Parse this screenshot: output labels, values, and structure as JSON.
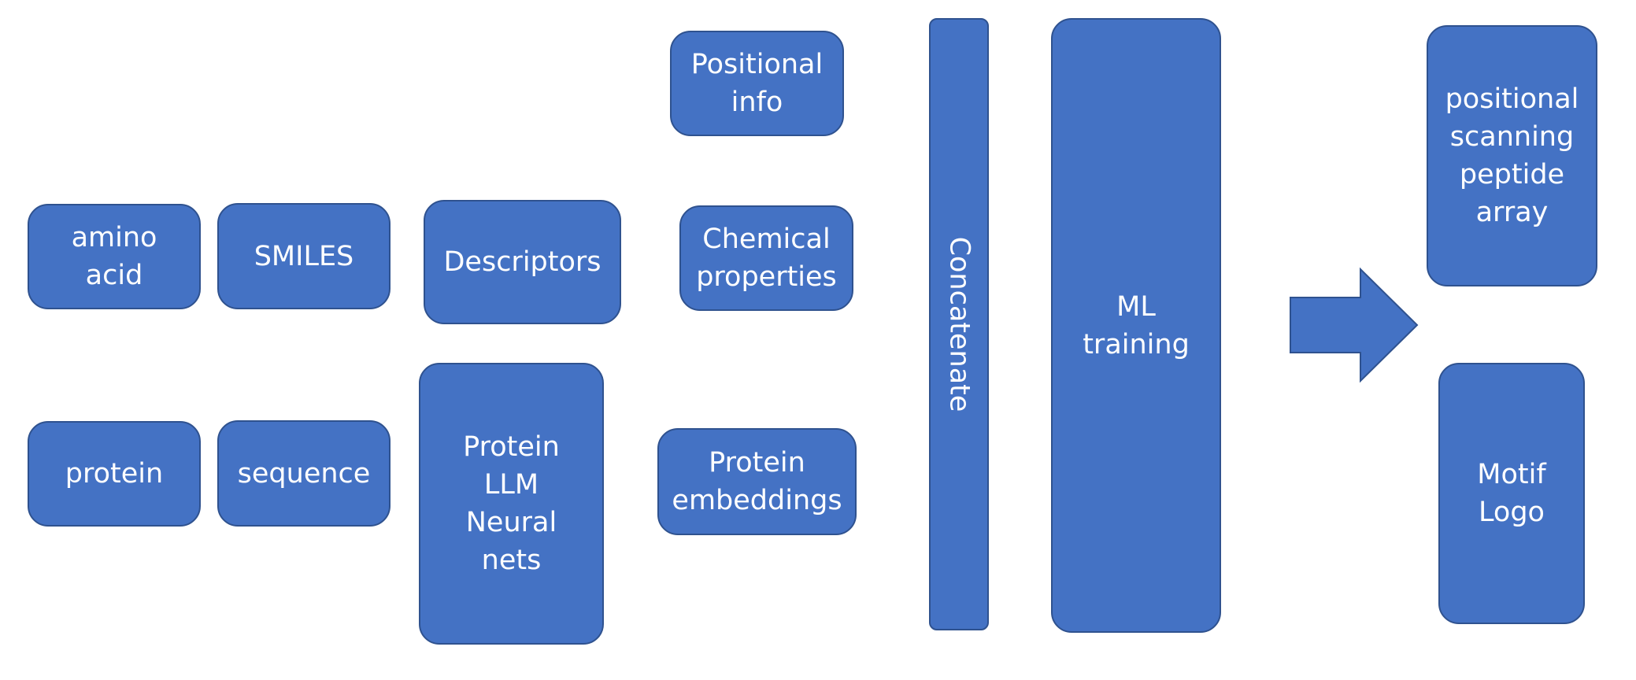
{
  "colors": {
    "box_fill": "#4472C4",
    "box_border": "#2F528F",
    "text": "#FFFFFF"
  },
  "boxes": {
    "amino_acid": "amino\nacid",
    "smiles": "SMILES",
    "descriptors": "Descriptors",
    "positional_info": "Positional\ninfo",
    "chemical_properties": "Chemical\nproperties",
    "protein": "protein",
    "sequence": "sequence",
    "protein_llm": "Protein\nLLM\nNeural\nnets",
    "protein_embeddings": "Protein\nembeddings",
    "concatenate": "Concatenate",
    "ml_training": "ML\ntraining",
    "psp_array": "positional\nscanning\npeptide\narray",
    "motif_logo": "Motif\nLogo"
  }
}
